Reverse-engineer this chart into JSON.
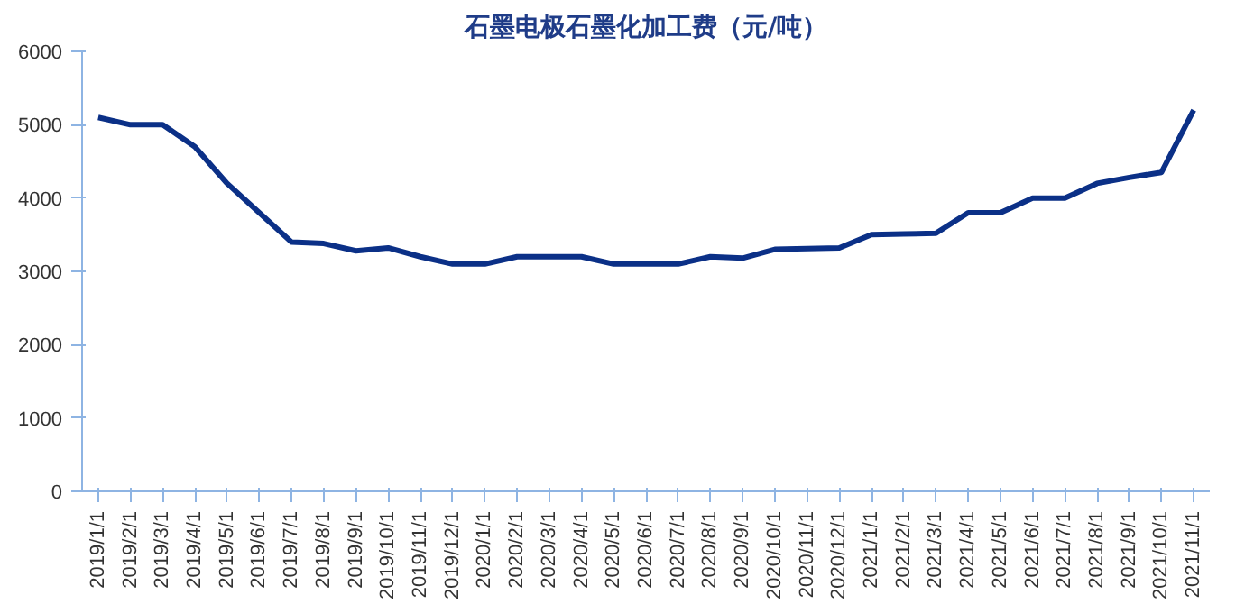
{
  "chart_data": {
    "type": "line",
    "title": "石墨电极石墨化加工费（元/吨）",
    "categories": [
      "2019/1/1",
      "2019/2/1",
      "2019/3/1",
      "2019/4/1",
      "2019/5/1",
      "2019/6/1",
      "2019/7/1",
      "2019/8/1",
      "2019/9/1",
      "2019/10/1",
      "2019/11/1",
      "2019/12/1",
      "2020/1/1",
      "2020/2/1",
      "2020/3/1",
      "2020/4/1",
      "2020/5/1",
      "2020/6/1",
      "2020/7/1",
      "2020/8/1",
      "2020/9/1",
      "2020/10/1",
      "2020/11/1",
      "2020/12/1",
      "2021/1/1",
      "2021/2/1",
      "2021/3/1",
      "2021/4/1",
      "2021/5/1",
      "2021/6/1",
      "2021/7/1",
      "2021/8/1",
      "2021/9/1",
      "2021/10/1",
      "2021/11/1"
    ],
    "series": [
      {
        "color": "#0b3087",
        "values": [
          5100,
          5000,
          5000,
          4700,
          4200,
          3800,
          3400,
          3380,
          3280,
          3320,
          3200,
          3100,
          3100,
          3200,
          3200,
          3200,
          3100,
          3100,
          3100,
          3200,
          3180,
          3300,
          3310,
          3320,
          3500,
          3510,
          3520,
          3800,
          3800,
          4000,
          4000,
          4200,
          4280,
          4350,
          5200
        ]
      }
    ],
    "ylim": [
      0,
      6000
    ],
    "yticks": [
      0,
      1000,
      2000,
      3000,
      4000,
      5000,
      6000
    ],
    "grid": false
  }
}
